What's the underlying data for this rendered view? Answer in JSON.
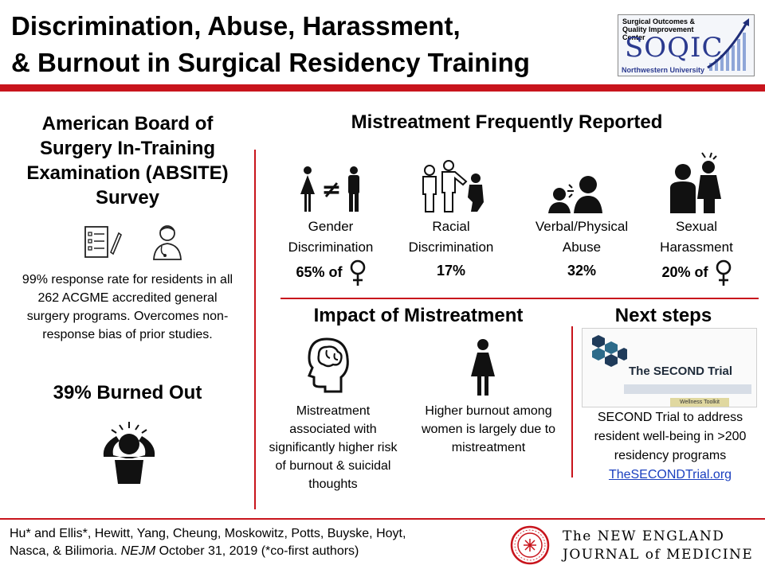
{
  "header": {
    "title_line1": "Discrimination, Abuse, Harassment,",
    "title_line2": "& Burnout in Surgical Residency Training",
    "logo": {
      "line1": "Surgical Outcomes &",
      "line2": "Quality Improvement Center",
      "acronym": "SOQIC",
      "line4": "Northwestern University"
    }
  },
  "left": {
    "survey_title": "American Board of Surgery In-Training Examination (ABSITE) Survey",
    "response_text": "99% response rate for residents in all 262 ACGME accredited general surgery programs. Overcomes non-response bias of prior studies.",
    "burned_out": "39% Burned Out",
    "icons": [
      "survey-form-icon",
      "physician-icon",
      "stressed-person-icon"
    ]
  },
  "mistreatment": {
    "title": "Mistreatment Frequently Reported",
    "categories": [
      {
        "label_line1": "Gender",
        "label_line2": "Discrimination",
        "value": "65% of",
        "female_symbol": true,
        "icon": "gender-inequality-icon"
      },
      {
        "label_line1": "Racial",
        "label_line2": "Discrimination",
        "value": "17%",
        "female_symbol": false,
        "icon": "racial-discrimination-icon"
      },
      {
        "label_line1": "Verbal/Physical",
        "label_line2": "Abuse",
        "value": "32%",
        "female_symbol": false,
        "icon": "verbal-abuse-icon"
      },
      {
        "label_line1": "Sexual",
        "label_line2": "Harassment",
        "value": "20% of",
        "female_symbol": true,
        "icon": "harassment-icon"
      }
    ]
  },
  "impact": {
    "title": "Impact of Mistreatment",
    "items": [
      {
        "text": "Mistreatment associated with significantly higher risk of burnout & suicidal thoughts",
        "icon": "brain-head-icon"
      },
      {
        "text": "Higher burnout among women is largely due to mistreatment",
        "icon": "woman-icon"
      }
    ]
  },
  "next_steps": {
    "title": "Next steps",
    "image_title": "The SECOND Trial",
    "image_button": "Wellness Toolkit",
    "text": "SECOND Trial to address resident well-being in >200 residency programs",
    "link": "TheSECONDTrial.org"
  },
  "footer": {
    "citation_line1": "Hu* and Ellis*, Hewitt, Yang, Cheung, Moskowitz, Potts, Buyske, Hoyt,",
    "citation_line2_pre": "Nasca, & Bilimoria. ",
    "journal_abbrev": "NEJM",
    "citation_line2_post": " October 31, 2019  (*co-first authors)",
    "journal_line1": "The NEW ENGLAND",
    "journal_line2": "JOURNAL of MEDICINE"
  },
  "colors": {
    "accent_red": "#c8141c",
    "link_blue": "#1a3fbf",
    "logo_blue": "#2b3a8f"
  }
}
